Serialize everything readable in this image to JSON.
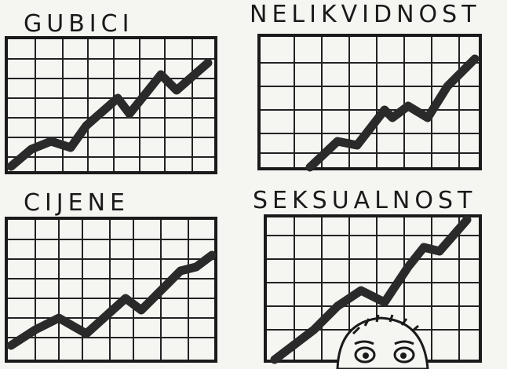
{
  "panels": [
    {
      "title": "GUBICI"
    },
    {
      "title": "NELIKVIDNOST"
    },
    {
      "title": "CIJENE"
    },
    {
      "title": "SEKSUALNOST"
    }
  ]
}
